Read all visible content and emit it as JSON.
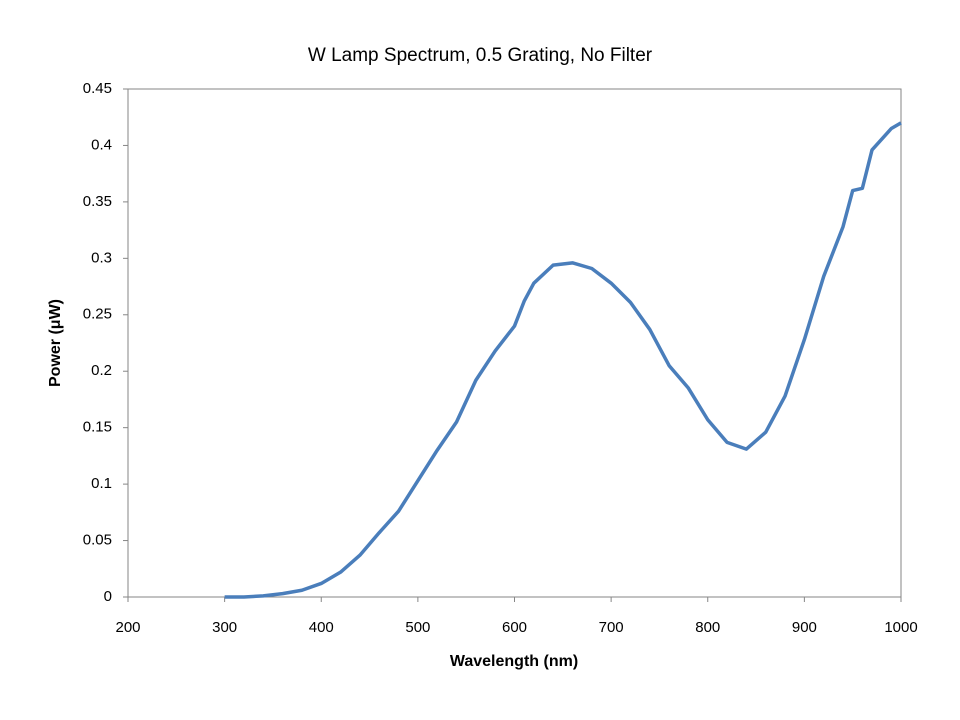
{
  "chart_data": {
    "type": "line",
    "title": "W Lamp Spectrum, 0.5 Grating, No Filter",
    "x_label": "Wavelength (nm)",
    "y_label": "Power (μW)",
    "x": [
      300,
      320,
      340,
      360,
      380,
      400,
      420,
      440,
      460,
      480,
      500,
      520,
      540,
      560,
      580,
      600,
      610,
      620,
      640,
      660,
      680,
      700,
      720,
      740,
      760,
      780,
      800,
      820,
      840,
      860,
      880,
      900,
      920,
      940,
      950,
      960,
      970,
      990,
      1000
    ],
    "series": [
      {
        "name": "Power",
        "color": "#4a7ebb",
        "values": [
          0,
          0,
          0.001,
          0.003,
          0.006,
          0.012,
          0.022,
          0.037,
          0.057,
          0.076,
          0.103,
          0.13,
          0.155,
          0.192,
          0.218,
          0.24,
          0.262,
          0.278,
          0.294,
          0.296,
          0.291,
          0.278,
          0.261,
          0.237,
          0.205,
          0.185,
          0.157,
          0.137,
          0.131,
          0.146,
          0.178,
          0.228,
          0.284,
          0.328,
          0.36,
          0.362,
          0.396,
          0.415,
          0.42
        ]
      }
    ],
    "xlim": [
      200,
      1000
    ],
    "xticks": [
      200,
      300,
      400,
      500,
      600,
      700,
      800,
      900,
      1000
    ],
    "ylim": [
      0,
      0.45
    ],
    "yticks": [
      0,
      0.05,
      0.1,
      0.15,
      0.2,
      0.25,
      0.3,
      0.35,
      0.4,
      0.45
    ],
    "grid": false
  }
}
